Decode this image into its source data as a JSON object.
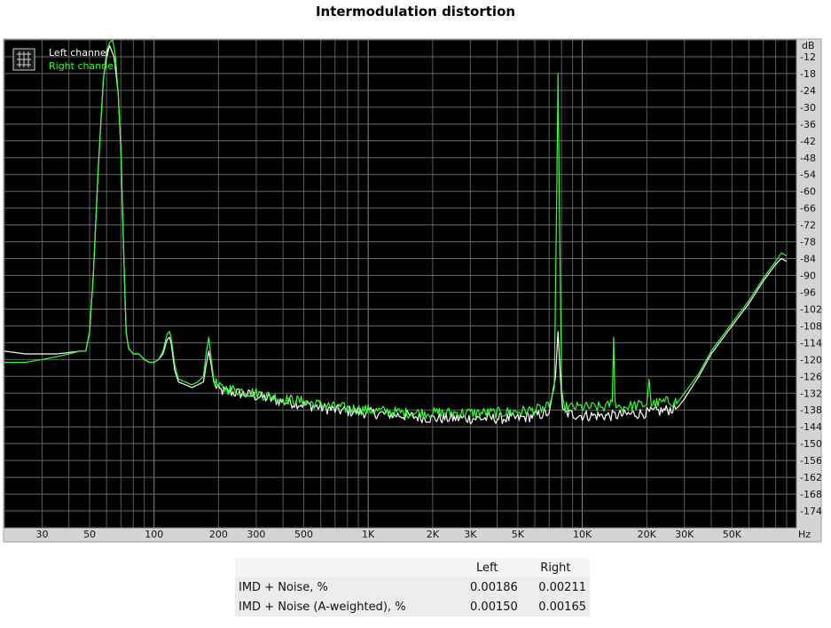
{
  "chart_data": {
    "type": "line",
    "title": "Intermodulation distortion",
    "xlabel": "Hz",
    "ylabel": "dB",
    "x_scale": "log",
    "xlim": [
      20,
      100000
    ],
    "ylim": [
      -180,
      -6
    ],
    "x_ticks": [
      {
        "value": 30,
        "label": "30"
      },
      {
        "value": 50,
        "label": "50"
      },
      {
        "value": 100,
        "label": "100"
      },
      {
        "value": 200,
        "label": "200"
      },
      {
        "value": 300,
        "label": "300"
      },
      {
        "value": 500,
        "label": "500"
      },
      {
        "value": 1000,
        "label": "1K"
      },
      {
        "value": 2000,
        "label": "2K"
      },
      {
        "value": 3000,
        "label": "3K"
      },
      {
        "value": 5000,
        "label": "5K"
      },
      {
        "value": 10000,
        "label": "10K"
      },
      {
        "value": 20000,
        "label": "20K"
      },
      {
        "value": 30000,
        "label": "30K"
      },
      {
        "value": 50000,
        "label": "50K"
      }
    ],
    "y_ticks": [
      -12,
      -18,
      -24,
      -30,
      -36,
      -42,
      -48,
      -54,
      -60,
      -66,
      -72,
      -78,
      -84,
      -90,
      -96,
      -102,
      -108,
      -114,
      -120,
      -126,
      -132,
      -138,
      -144,
      -150,
      -156,
      -162,
      -168,
      -174
    ],
    "grid": true,
    "legend_position": "top-left",
    "series": [
      {
        "name": "Left channel",
        "color": "#ffffff",
        "points": [
          [
            20,
            -117
          ],
          [
            25,
            -118
          ],
          [
            30,
            -118
          ],
          [
            35,
            -118
          ],
          [
            40,
            -117.5
          ],
          [
            45,
            -117
          ],
          [
            48,
            -117
          ],
          [
            50,
            -110
          ],
          [
            52,
            -90
          ],
          [
            55,
            -50
          ],
          [
            58,
            -20
          ],
          [
            60,
            -12
          ],
          [
            62,
            -8
          ],
          [
            65,
            -12
          ],
          [
            68,
            -25
          ],
          [
            70,
            -45
          ],
          [
            72,
            -80
          ],
          [
            74,
            -110
          ],
          [
            76,
            -116
          ],
          [
            80,
            -118
          ],
          [
            85,
            -118
          ],
          [
            90,
            -120
          ],
          [
            95,
            -121
          ],
          [
            100,
            -121
          ],
          [
            105,
            -120
          ],
          [
            110,
            -118
          ],
          [
            115,
            -113
          ],
          [
            118,
            -112
          ],
          [
            120,
            -114
          ],
          [
            125,
            -124
          ],
          [
            130,
            -128
          ],
          [
            140,
            -129
          ],
          [
            150,
            -130
          ],
          [
            160,
            -129
          ],
          [
            170,
            -128
          ],
          [
            175,
            -122
          ],
          [
            180,
            -117
          ],
          [
            185,
            -122
          ],
          [
            190,
            -128
          ],
          [
            200,
            -131
          ],
          [
            250,
            -132
          ],
          [
            300,
            -133
          ],
          [
            400,
            -135
          ],
          [
            500,
            -136
          ],
          [
            700,
            -138
          ],
          [
            1000,
            -139
          ],
          [
            1500,
            -140
          ],
          [
            2000,
            -141
          ],
          [
            3000,
            -141
          ],
          [
            4000,
            -141
          ],
          [
            5000,
            -141
          ],
          [
            6000,
            -140
          ],
          [
            7000,
            -139
          ],
          [
            7500,
            -126
          ],
          [
            7700,
            -110
          ],
          [
            7900,
            -126
          ],
          [
            8100,
            -139
          ],
          [
            10000,
            -140
          ],
          [
            14000,
            -140
          ],
          [
            20000,
            -139
          ],
          [
            25000,
            -138
          ],
          [
            28000,
            -137
          ],
          [
            30000,
            -134
          ],
          [
            35000,
            -126
          ],
          [
            40000,
            -118
          ],
          [
            50000,
            -108
          ],
          [
            60000,
            -100
          ],
          [
            70000,
            -92
          ],
          [
            80000,
            -86
          ],
          [
            85000,
            -84
          ],
          [
            90000,
            -85
          ]
        ]
      },
      {
        "name": "Right channel",
        "color": "#33ff33",
        "points": [
          [
            20,
            -121
          ],
          [
            25,
            -121
          ],
          [
            30,
            -120
          ],
          [
            35,
            -119
          ],
          [
            40,
            -118
          ],
          [
            45,
            -117
          ],
          [
            48,
            -117
          ],
          [
            50,
            -110
          ],
          [
            52,
            -90
          ],
          [
            55,
            -50
          ],
          [
            58,
            -20
          ],
          [
            60,
            -10
          ],
          [
            62,
            -7
          ],
          [
            64,
            -6
          ],
          [
            66,
            -12
          ],
          [
            68,
            -25
          ],
          [
            70,
            -45
          ],
          [
            72,
            -80
          ],
          [
            74,
            -110
          ],
          [
            76,
            -116
          ],
          [
            80,
            -118
          ],
          [
            85,
            -118
          ],
          [
            90,
            -120
          ],
          [
            95,
            -121
          ],
          [
            100,
            -121
          ],
          [
            105,
            -120
          ],
          [
            110,
            -117
          ],
          [
            115,
            -111
          ],
          [
            118,
            -110
          ],
          [
            120,
            -112
          ],
          [
            125,
            -122
          ],
          [
            130,
            -127
          ],
          [
            140,
            -128
          ],
          [
            150,
            -129
          ],
          [
            160,
            -128
          ],
          [
            170,
            -126
          ],
          [
            175,
            -118
          ],
          [
            180,
            -112
          ],
          [
            185,
            -120
          ],
          [
            190,
            -127
          ],
          [
            200,
            -130
          ],
          [
            250,
            -131
          ],
          [
            300,
            -132
          ],
          [
            400,
            -134
          ],
          [
            500,
            -135
          ],
          [
            700,
            -137
          ],
          [
            1000,
            -138
          ],
          [
            1500,
            -139
          ],
          [
            2000,
            -139
          ],
          [
            3000,
            -139
          ],
          [
            4000,
            -139
          ],
          [
            5000,
            -138.5
          ],
          [
            6000,
            -138
          ],
          [
            7000,
            -137
          ],
          [
            7400,
            -130
          ],
          [
            7600,
            -60
          ],
          [
            7700,
            -18
          ],
          [
            7800,
            -60
          ],
          [
            8000,
            -130
          ],
          [
            8200,
            -137
          ],
          [
            10000,
            -137
          ],
          [
            13000,
            -137
          ],
          [
            13800,
            -135
          ],
          [
            14000,
            -112
          ],
          [
            14200,
            -135
          ],
          [
            15000,
            -137
          ],
          [
            20000,
            -136
          ],
          [
            20500,
            -127
          ],
          [
            21000,
            -136
          ],
          [
            25000,
            -135
          ],
          [
            28000,
            -135
          ],
          [
            30000,
            -132
          ],
          [
            35000,
            -125
          ],
          [
            40000,
            -117
          ],
          [
            50000,
            -107
          ],
          [
            60000,
            -99
          ],
          [
            70000,
            -91
          ],
          [
            80000,
            -85
          ],
          [
            85000,
            -82
          ],
          [
            90000,
            -83
          ]
        ]
      }
    ]
  },
  "results_table": {
    "headers": [
      "",
      "Left",
      "Right"
    ],
    "rows": [
      [
        "IMD + Noise, %",
        "0.00186",
        "0.00211"
      ],
      [
        "IMD + Noise (A-weighted), %",
        "0.00150",
        "0.00165"
      ]
    ]
  }
}
